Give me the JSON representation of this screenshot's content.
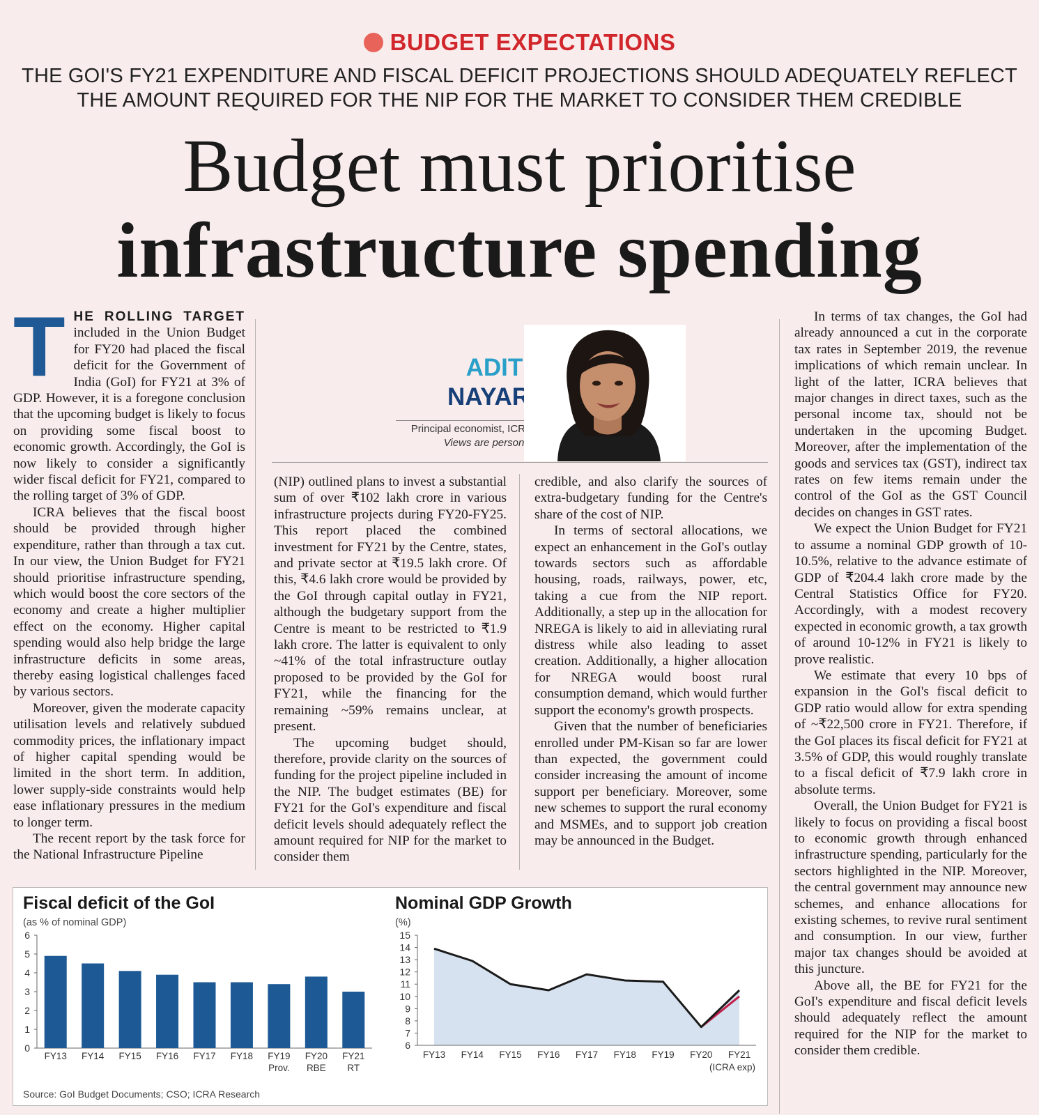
{
  "header": {
    "kicker": "BUDGET EXPECTATIONS",
    "deck_line1": "THE GOI'S FY21 EXPENDITURE AND FISCAL DEFICIT PROJECTIONS SHOULD ADEQUATELY REFLECT",
    "deck_line2": "THE AMOUNT REQUIRED FOR THE NIP FOR THE MARKET TO CONSIDER THEM CREDIBLE",
    "headline_line1": "Budget must prioritise",
    "headline_line2": "infrastructure spending"
  },
  "author": {
    "first_name": "ADITI",
    "last_name": "NAYAR",
    "role": "Principal economist, ICRA",
    "disclaimer": "Views are personal"
  },
  "article": {
    "dropcap": "T",
    "lead_words": "HE ROLLING TARGET",
    "col1": [
      "included in the Union Budget for FY20 had placed the fiscal deficit for the Government of India (GoI) for FY21 at 3% of GDP. However, it is a foregone conclusion that the upcoming budget is likely to focus on providing some fiscal boost to economic growth. Accordingly, the GoI is now likely to consider a significantly wider fiscal deficit for FY21, compared to the rolling target of 3% of GDP.",
      "ICRA believes that the fiscal boost should be provided through higher expenditure, rather than through a tax cut. In our view, the Union Budget for FY21 should prioritise infrastructure spending, which would boost the core sectors of the economy and create a higher multiplier effect on the economy. Higher capital spending would also help bridge the large infrastructure deficits in some areas, thereby easing logistical challenges faced by various sectors.",
      "Moreover, given the moderate capacity utilisation levels and relatively subdued commodity prices, the inflationary impact of higher capital spending would be limited in the short term. In addition, lower supply-side constraints would help ease inflationary pressures in the medium to longer term.",
      "The recent report by the task force for the National Infrastructure Pipeline"
    ],
    "col2": [
      "(NIP) outlined plans to invest a substantial sum of over ₹102 lakh crore in various infrastructure projects during FY20-FY25. This report placed the combined investment for FY21 by the Centre, states, and private sector at ₹19.5 lakh crore. Of this, ₹4.6 lakh crore would be provided by the GoI through capital outlay in FY21, although the budgetary support from the Centre is meant to be restricted to ₹1.9 lakh crore. The latter is equivalent to only ~41% of the total infrastructure outlay proposed to be provided by the GoI for FY21, while the financing for the remaining ~59% remains unclear, at present.",
      "The upcoming budget should, therefore, provide clarity on the sources of funding for the project pipeline included in the NIP. The budget estimates (BE) for FY21 for the GoI's expenditure and fiscal deficit levels should adequately reflect the amount required for NIP for the market to consider them"
    ],
    "col3": [
      "credible, and also clarify the sources of extra-budgetary funding for the Centre's share of the cost of NIP.",
      "In terms of sectoral allocations, we expect an enhancement in the GoI's outlay towards sectors such as affordable housing, roads, railways, power, etc, taking a cue from the NIP report. Additionally, a step up in the allocation for NREGA is likely to aid in alleviating rural distress while also leading to asset creation. Additionally, a higher allocation for NREGA would boost rural consumption demand, which would further support the economy's growth prospects.",
      "Given that the number of beneficiaries enrolled under PM-Kisan so far are lower than expected, the government could consider increasing the amount of income support per beneficiary. Moreover, some new schemes to support the rural economy and MSMEs, and to support job creation may be announced in the Budget."
    ],
    "col4": [
      "In terms of tax changes, the GoI had already announced a cut in the corporate tax rates in September 2019, the revenue implications of which remain unclear. In light of the latter, ICRA believes that major changes in direct taxes, such as the personal income tax, should not be undertaken in the upcoming Budget. Moreover, after the implementation of the goods and services tax (GST), indirect tax rates on few items remain under the control of the GoI as the GST Council decides on changes in GST rates.",
      "We expect the Union Budget for FY21 to assume a nominal GDP growth of 10-10.5%, relative to the advance estimate of GDP of ₹204.4 lakh crore made by the Central Statistics Office for FY20. Accordingly, with a modest recovery expected in economic growth, a tax growth of around 10-12% in FY21 is likely to prove realistic.",
      "We estimate that every 10 bps of expansion in the GoI's fiscal deficit to GDP ratio would allow for extra spending of ~₹22,500 crore in FY21. Therefore, if the GoI places its fiscal deficit for FY21 at 3.5% of GDP, this would roughly translate to a fiscal deficit of ₹7.9 lakh crore in absolute terms.",
      "Overall, the Union Budget for FY21 is likely to focus on providing a fiscal boost to economic growth through enhanced infrastructure spending, particularly for the sectors highlighted in the NIP. Moreover, the central government may announce new schemes, and enhance allocations for existing schemes, to revive rural sentiment and consumption. In our view, further major tax changes should be avoided at this juncture.",
      "Above all, the BE for FY21 for the GoI's expenditure and fiscal deficit levels should adequately reflect the amount required for the NIP for the market to consider them credible."
    ]
  },
  "colors": {
    "bar": "#1d5a95",
    "area": "#d6e2ef",
    "line": "#1a1a1a",
    "projection": "#c21f4b",
    "accent": "#d1262b"
  },
  "chart_data": [
    {
      "type": "bar",
      "title": "Fiscal deficit of the GoI",
      "subtitle": "(as % of nominal GDP)",
      "categories": [
        "FY13",
        "FY14",
        "FY15",
        "FY16",
        "FY17",
        "FY18",
        "FY19",
        "FY20",
        "FY21"
      ],
      "category_sublabels": [
        "",
        "",
        "",
        "",
        "",
        "",
        "Prov.",
        "RBE",
        "RT"
      ],
      "values": [
        4.9,
        4.5,
        4.1,
        3.9,
        3.5,
        3.5,
        3.4,
        3.8,
        3.0
      ],
      "ylim": [
        0,
        6
      ],
      "yticks": [
        0,
        1,
        2,
        3,
        4,
        5,
        6
      ],
      "source": "Source: GoI Budget Documents; CSO; ICRA Research"
    },
    {
      "type": "area",
      "title": "Nominal GDP Growth",
      "subtitle": "(%)",
      "categories": [
        "FY13",
        "FY14",
        "FY15",
        "FY16",
        "FY17",
        "FY18",
        "FY19",
        "FY20",
        "FY21"
      ],
      "category_sublabels": [
        "",
        "",
        "",
        "",
        "",
        "",
        "",
        "",
        "(ICRA exp)"
      ],
      "values": [
        13.9,
        12.9,
        11.0,
        10.5,
        11.8,
        11.3,
        11.2,
        7.5,
        10.5
      ],
      "projection_value": 10.0,
      "ylim": [
        6,
        15
      ],
      "yticks": [
        6,
        7,
        8,
        9,
        10,
        11,
        12,
        13,
        14,
        15
      ]
    }
  ]
}
